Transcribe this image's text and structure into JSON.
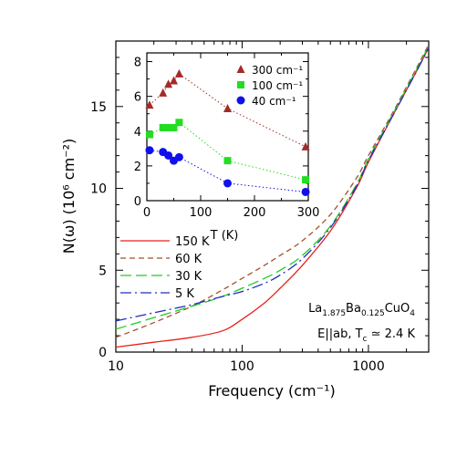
{
  "chart_data": [
    {
      "type": "line",
      "xlabel": "Frequency (cm⁻¹)",
      "ylabel": "N(ω)  (10⁶ cm⁻²)",
      "xscale": "log",
      "xlim": [
        10,
        3000
      ],
      "ylim": [
        0,
        19
      ],
      "xticks": [
        10,
        100,
        1000
      ],
      "xtick_labels": [
        "10",
        "100",
        "1000"
      ],
      "yticks": [
        0,
        5,
        10,
        15
      ],
      "ytick_labels": [
        "0",
        "5",
        "10",
        "15"
      ],
      "grid": false,
      "legend_position": "lower-left",
      "annotation_material": "La1.875Ba0.125CuO4",
      "annotation_condition": "E||ab, Tc ≃ 2.4 K",
      "series": [
        {
          "name": "150 K",
          "color": "#e8201a",
          "dash": "solid",
          "x": [
            10,
            20,
            40,
            70,
            100,
            150,
            200,
            300,
            500,
            800,
            1000,
            1500,
            2000,
            2500,
            3000
          ],
          "y": [
            0.3,
            0.6,
            0.9,
            1.3,
            2.0,
            3.0,
            3.9,
            5.3,
            7.4,
            10.0,
            11.6,
            14.2,
            16.0,
            17.4,
            18.6
          ]
        },
        {
          "name": "60 K",
          "color": "#a0522d",
          "dash": "dashed",
          "x": [
            10,
            20,
            40,
            70,
            100,
            150,
            200,
            300,
            500,
            800,
            1000,
            1500,
            2000,
            2500,
            3000
          ],
          "y": [
            0.9,
            1.8,
            2.8,
            3.8,
            4.5,
            5.3,
            5.9,
            6.8,
            8.4,
            10.6,
            12.0,
            14.4,
            16.2,
            17.6,
            18.8
          ]
        },
        {
          "name": "30 K",
          "color": "#22cc22",
          "dash": "longdash",
          "x": [
            10,
            20,
            40,
            70,
            100,
            150,
            200,
            300,
            500,
            800,
            1000,
            1500,
            2000,
            2500,
            3000
          ],
          "y": [
            1.4,
            2.1,
            2.8,
            3.4,
            3.9,
            4.5,
            5.0,
            5.9,
            7.7,
            10.2,
            11.8,
            14.3,
            16.1,
            17.5,
            18.7
          ]
        },
        {
          "name": "5 K",
          "color": "#1f2cc0",
          "dash": "dashdot",
          "x": [
            10,
            20,
            40,
            70,
            100,
            150,
            200,
            300,
            500,
            800,
            1000,
            1500,
            2000,
            2500,
            3000
          ],
          "y": [
            1.9,
            2.4,
            2.9,
            3.4,
            3.7,
            4.2,
            4.7,
            5.7,
            7.6,
            10.1,
            11.7,
            14.2,
            16.0,
            17.4,
            18.6
          ]
        }
      ]
    },
    {
      "type": "scatter",
      "xlabel": "T (K)",
      "ylabel": "",
      "xlim": [
        0,
        300
      ],
      "ylim": [
        0,
        8.5
      ],
      "xticks": [
        0,
        100,
        200,
        300
      ],
      "xtick_labels": [
        "0",
        "100",
        "200",
        "300"
      ],
      "yticks": [
        0,
        2,
        4,
        6,
        8
      ],
      "ytick_labels": [
        "0",
        "2",
        "4",
        "6",
        "8"
      ],
      "grid": false,
      "legend_position": "top-right",
      "series": [
        {
          "name": "300 cm⁻¹",
          "color": "#a52a2a",
          "marker": "triangle",
          "x": [
            5,
            30,
            40,
            50,
            60,
            150,
            295
          ],
          "y": [
            5.5,
            6.2,
            6.7,
            6.9,
            7.3,
            5.3,
            3.1
          ]
        },
        {
          "name": "100 cm⁻¹",
          "color": "#22dd22",
          "marker": "square",
          "x": [
            5,
            30,
            40,
            50,
            60,
            150,
            295
          ],
          "y": [
            3.8,
            4.2,
            4.2,
            4.2,
            4.5,
            2.3,
            1.2
          ]
        },
        {
          "name": "40 cm⁻¹",
          "color": "#1010ee",
          "marker": "circle",
          "x": [
            5,
            30,
            40,
            50,
            60,
            150,
            295
          ],
          "y": [
            2.9,
            2.8,
            2.6,
            2.3,
            2.5,
            1.0,
            0.5
          ]
        }
      ]
    }
  ]
}
